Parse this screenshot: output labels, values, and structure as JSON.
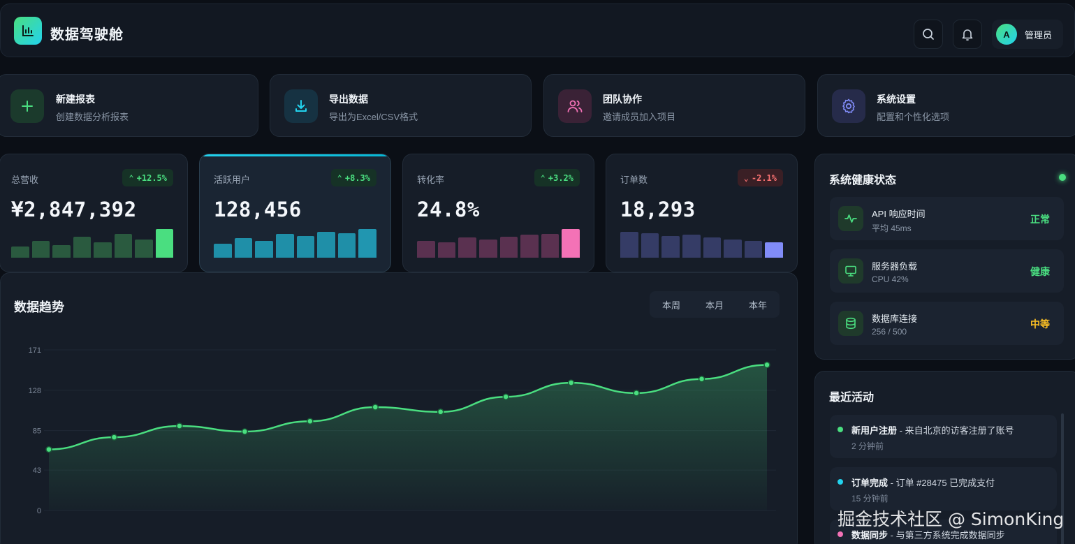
{
  "header": {
    "brand": "数据驾驶舱",
    "user_initial": "A",
    "user_name": "管理员"
  },
  "actions": [
    {
      "title": "新建报表",
      "subtitle": "创建数据分析报表",
      "icon": "plus-icon",
      "color": "#4ade80",
      "bg": "#1b3a2c"
    },
    {
      "title": "导出数据",
      "subtitle": "导出为Excel/CSV格式",
      "icon": "download-icon",
      "color": "#22d3ee",
      "bg": "#163242"
    },
    {
      "title": "团队协作",
      "subtitle": "邀请成员加入项目",
      "icon": "users-icon",
      "color": "#f472b6",
      "bg": "#3a2236"
    },
    {
      "title": "系统设置",
      "subtitle": "配置和个性化选项",
      "icon": "gear-icon",
      "color": "#818cf8",
      "bg": "#262b4a"
    }
  ],
  "stats": [
    {
      "label": "总营收",
      "value": "¥2,847,392",
      "change": "+12.5%",
      "direction": "up",
      "bar_color": "#2a5a3f",
      "bar_highlight": "#4ade80",
      "bars": [
        0.38,
        0.56,
        0.42,
        0.72,
        0.52,
        0.82,
        0.62,
        0.98
      ]
    },
    {
      "label": "活跃用户",
      "value": "128,456",
      "change": "+8.3%",
      "direction": "up",
      "bar_color": "#1f8fa8",
      "bar_highlight": "#2196b0",
      "bars": [
        0.48,
        0.66,
        0.58,
        0.8,
        0.74,
        0.88,
        0.84,
        0.98
      ]
    },
    {
      "label": "转化率",
      "value": "24.8%",
      "change": "+3.2%",
      "direction": "up",
      "bar_color": "#5a3150",
      "bar_highlight": "#f472b6",
      "bars": [
        0.56,
        0.52,
        0.68,
        0.62,
        0.72,
        0.78,
        0.82,
        0.98
      ]
    },
    {
      "label": "订单数",
      "value": "18,293",
      "change": "-2.1%",
      "direction": "down",
      "bar_color": "#353c66",
      "bar_highlight": "#818cf8",
      "bars": [
        0.88,
        0.84,
        0.74,
        0.78,
        0.68,
        0.62,
        0.58,
        0.52
      ]
    }
  ],
  "trend": {
    "title": "数据趋势",
    "ranges": [
      "本周",
      "本月",
      "本年"
    ],
    "chart_data": {
      "type": "area",
      "y_ticks": [
        "0",
        "43",
        "85",
        "128",
        "171"
      ],
      "ylim": [
        0,
        171
      ],
      "series": [
        {
          "values": [
            65,
            78,
            90,
            84,
            95,
            110,
            105,
            121,
            136,
            125,
            140,
            155
          ]
        }
      ],
      "grid": true,
      "line_color": "#4ade80"
    }
  },
  "health": {
    "title": "系统健康状态",
    "items": [
      {
        "name": "API 响应时间",
        "detail": "平均 45ms",
        "status": "正常",
        "status_color": "#4ade80",
        "icon": "activity-icon"
      },
      {
        "name": "服务器负载",
        "detail": "CPU 42%",
        "status": "健康",
        "status_color": "#4ade80",
        "icon": "monitor-icon"
      },
      {
        "name": "数据库连接",
        "detail": "256 / 500",
        "status": "中等",
        "status_color": "#fbbf24",
        "icon": "database-icon"
      }
    ]
  },
  "activity": {
    "title": "最近活动",
    "items": [
      {
        "title": "新用户注册",
        "desc": " - 来自北京的访客注册了账号",
        "time": "2 分钟前",
        "color": "#4ade80"
      },
      {
        "title": "订单完成",
        "desc": " - 订单 #28475 已完成支付",
        "time": "15 分钟前",
        "color": "#22d3ee"
      },
      {
        "title": "数据同步",
        "desc": " - 与第三方系统完成数据同步",
        "time": "",
        "color": "#f472b6"
      }
    ]
  },
  "watermark": "掘金技术社区 @ SimonKing"
}
